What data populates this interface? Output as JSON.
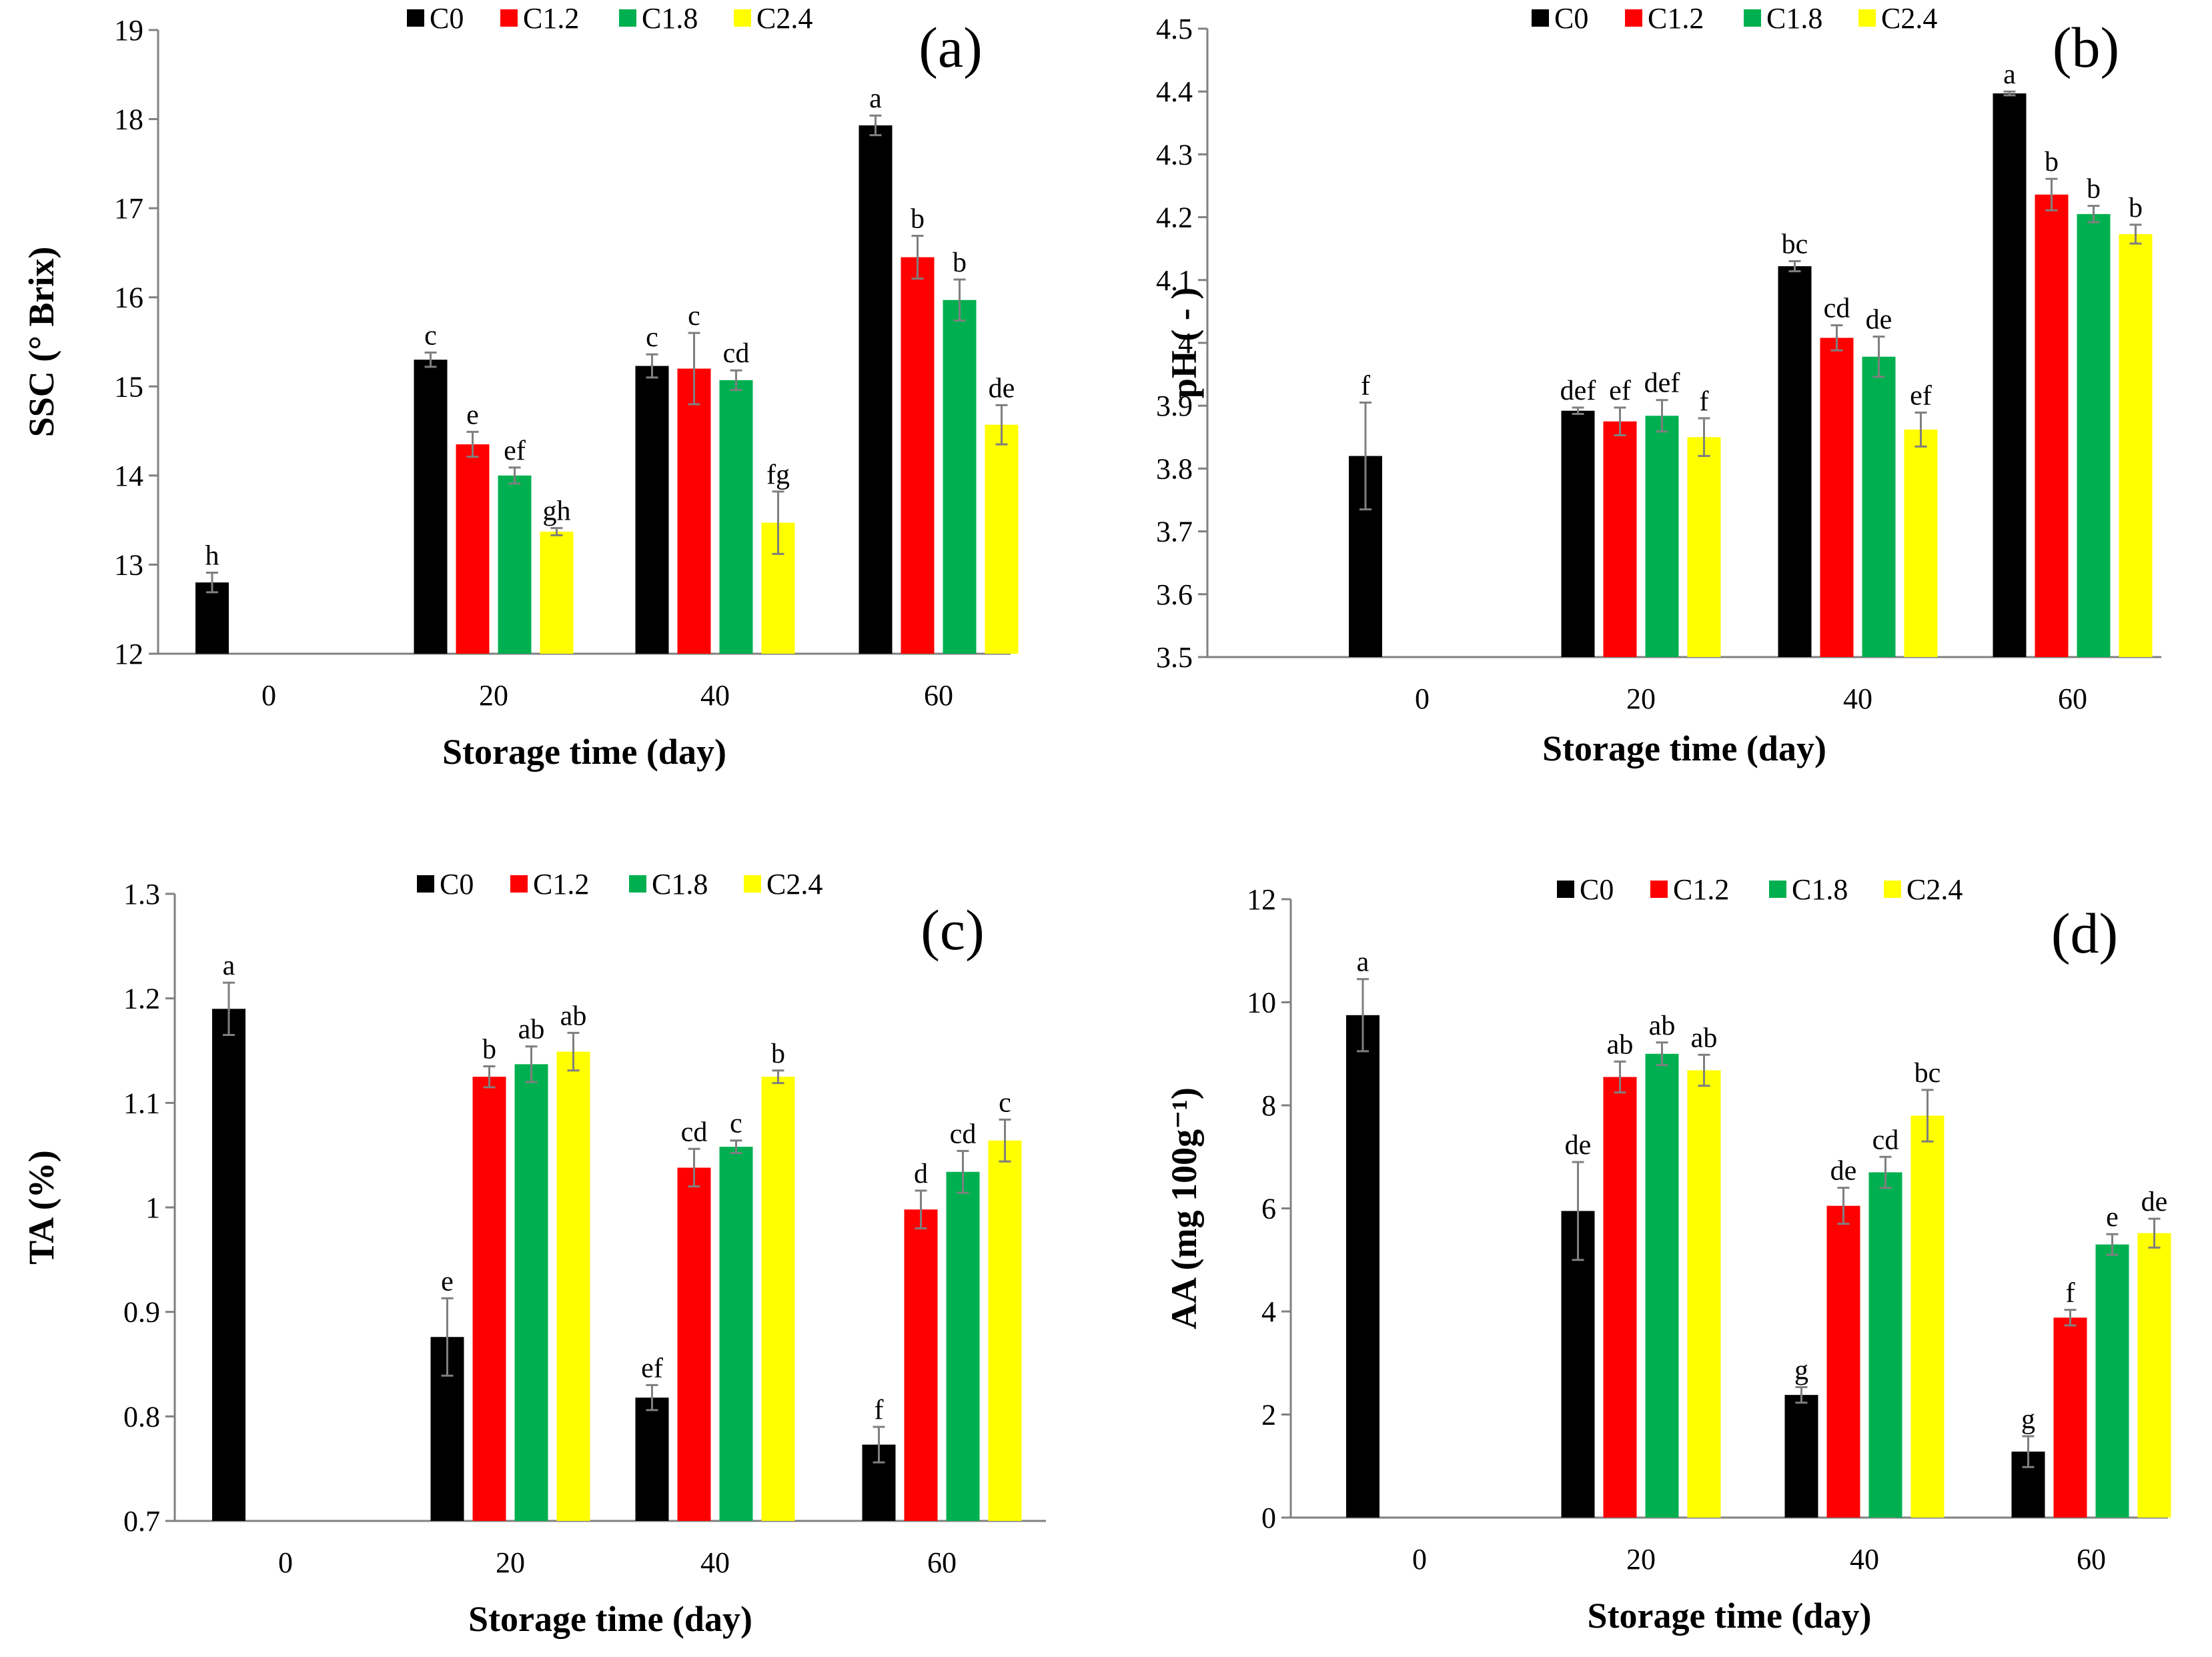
{
  "figure": {
    "legend_labels": [
      "C0",
      "C1.2",
      "C1.8",
      "C2.4"
    ],
    "series_colors": [
      "#000000",
      "#ff0000",
      "#00b050",
      "#ffff00"
    ]
  },
  "chart_data": [
    {
      "id": "a",
      "type": "bar",
      "panel_label": "(a)",
      "title": "",
      "xlabel": "Storage time (day)",
      "ylabel": "SSC (° Brix)",
      "ylim": [
        12,
        19
      ],
      "yticks": [
        "12",
        "13",
        "14",
        "15",
        "16",
        "17",
        "18",
        "19"
      ],
      "categories": [
        "0",
        "20",
        "40",
        "60"
      ],
      "series": [
        {
          "name": "C0",
          "values": [
            12.8,
            15.3,
            15.23,
            17.93
          ],
          "errors": [
            0.11,
            0.08,
            0.13,
            0.11
          ],
          "labels": [
            "h",
            "c",
            "c",
            "a"
          ]
        },
        {
          "name": "C1.2",
          "values": [
            null,
            14.35,
            15.2,
            16.45
          ],
          "errors": [
            null,
            0.14,
            0.4,
            0.24
          ],
          "labels": [
            null,
            "e",
            "c",
            "b"
          ]
        },
        {
          "name": "C1.8",
          "values": [
            null,
            14.0,
            15.07,
            15.97
          ],
          "errors": [
            null,
            0.09,
            0.11,
            0.23
          ],
          "labels": [
            null,
            "ef",
            "cd",
            "b"
          ]
        },
        {
          "name": "C2.4",
          "values": [
            null,
            13.37,
            13.47,
            14.57
          ],
          "errors": [
            null,
            0.04,
            0.35,
            0.22
          ],
          "labels": [
            null,
            "gh",
            "fg",
            "de"
          ]
        }
      ],
      "legend": "top-center"
    },
    {
      "id": "b",
      "type": "bar",
      "panel_label": "(b)",
      "title": "",
      "xlabel": "Storage time (day)",
      "ylabel": "pH ( - )",
      "ylim": [
        3.5,
        4.5
      ],
      "yticks": [
        "3.5",
        "3.6",
        "3.7",
        "3.8",
        "3.9",
        "4",
        "4.1",
        "4.2",
        "4.3",
        "4.4",
        "4.5"
      ],
      "categories": [
        "0",
        "20",
        "40",
        "60"
      ],
      "series": [
        {
          "name": "C0",
          "values": [
            3.82,
            3.892,
            4.122,
            4.397
          ],
          "errors": [
            0.085,
            0.005,
            0.008,
            0.003
          ],
          "labels": [
            "f",
            "def",
            "bc",
            "a"
          ]
        },
        {
          "name": "C1.2",
          "values": [
            null,
            3.875,
            4.008,
            4.236
          ],
          "errors": [
            null,
            0.022,
            0.02,
            0.025
          ],
          "labels": [
            null,
            "ef",
            "cd",
            "b"
          ]
        },
        {
          "name": "C1.8",
          "values": [
            null,
            3.884,
            3.978,
            4.205
          ],
          "errors": [
            null,
            0.025,
            0.032,
            0.013
          ],
          "labels": [
            null,
            "def",
            "de",
            "b"
          ]
        },
        {
          "name": "C2.4",
          "values": [
            null,
            3.85,
            3.862,
            4.173
          ],
          "errors": [
            null,
            0.03,
            0.027,
            0.015
          ],
          "labels": [
            null,
            "f",
            "ef",
            "b"
          ]
        }
      ],
      "legend": "top-center"
    },
    {
      "id": "c",
      "type": "bar",
      "panel_label": "(c)",
      "title": "",
      "xlabel": "Storage time (day)",
      "ylabel": "TA (%)",
      "ylim": [
        0.7,
        1.3
      ],
      "yticks": [
        "0.7",
        "0.8",
        "0.9",
        "1",
        "1.1",
        "1.2",
        "1.3"
      ],
      "categories": [
        "0",
        "20",
        "40",
        "60"
      ],
      "series": [
        {
          "name": "C0",
          "values": [
            1.19,
            0.876,
            0.818,
            0.773
          ],
          "errors": [
            0.025,
            0.037,
            0.012,
            0.017
          ],
          "labels": [
            "a",
            "e",
            "ef",
            "f"
          ]
        },
        {
          "name": "C1.2",
          "values": [
            null,
            1.125,
            1.038,
            0.998
          ],
          "errors": [
            null,
            0.01,
            0.018,
            0.018
          ],
          "labels": [
            null,
            "b",
            "cd",
            "d"
          ]
        },
        {
          "name": "C1.8",
          "values": [
            null,
            1.137,
            1.058,
            1.034
          ],
          "errors": [
            null,
            0.017,
            0.006,
            0.02
          ],
          "labels": [
            null,
            "ab",
            "c",
            "cd"
          ]
        },
        {
          "name": "C2.4",
          "values": [
            null,
            1.149,
            1.125,
            1.064
          ],
          "errors": [
            null,
            0.018,
            0.006,
            0.02
          ],
          "labels": [
            null,
            "ab",
            "b",
            "c"
          ]
        }
      ],
      "legend": "top-center"
    },
    {
      "id": "d",
      "type": "bar",
      "panel_label": "(d)",
      "title": "",
      "xlabel": "Storage time (day)",
      "ylabel": "AA (mg 100g⁻¹)",
      "ylim": [
        0,
        12
      ],
      "yticks": [
        "0",
        "2",
        "4",
        "6",
        "8",
        "10",
        "12"
      ],
      "categories": [
        "0",
        "20",
        "40",
        "60"
      ],
      "series": [
        {
          "name": "C0",
          "values": [
            9.75,
            5.95,
            2.38,
            1.28
          ],
          "errors": [
            0.7,
            0.95,
            0.15,
            0.3
          ],
          "labels": [
            "a",
            "de",
            "g",
            "g"
          ]
        },
        {
          "name": "C1.2",
          "values": [
            null,
            8.55,
            6.05,
            3.88
          ],
          "errors": [
            null,
            0.3,
            0.35,
            0.15
          ],
          "labels": [
            null,
            "ab",
            "de",
            "f"
          ]
        },
        {
          "name": "C1.8",
          "values": [
            null,
            9.0,
            6.7,
            5.3
          ],
          "errors": [
            null,
            0.22,
            0.3,
            0.2
          ],
          "labels": [
            null,
            "ab",
            "cd",
            "e"
          ]
        },
        {
          "name": "C2.4",
          "values": [
            null,
            8.68,
            7.8,
            5.52
          ],
          "errors": [
            null,
            0.3,
            0.5,
            0.28
          ],
          "labels": [
            null,
            "ab",
            "bc",
            "de"
          ]
        }
      ],
      "legend": "top-center"
    }
  ]
}
